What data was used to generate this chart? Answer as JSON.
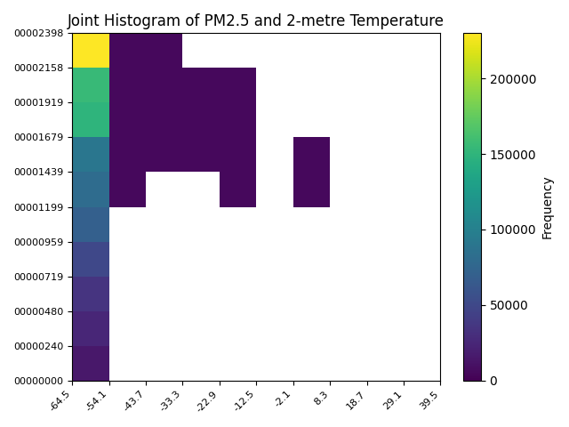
{
  "title": "Joint Histogram of PM2.5 and 2-metre Temperature",
  "colormap": "viridis",
  "cbar_label": "Frequency",
  "x_edges": [
    -64.5,
    -54.1,
    -43.7,
    -33.3,
    -22.9,
    -12.5,
    -2.1,
    8.3,
    18.7,
    29.1,
    39.5
  ],
  "y_edges": [
    0,
    240,
    480,
    719,
    959,
    1199,
    1439,
    1679,
    1919,
    2158,
    2398
  ],
  "cells": [
    {
      "xi": 0,
      "yi": 9,
      "val": 230000
    },
    {
      "xi": 0,
      "yi": 8,
      "val": 155000
    },
    {
      "xi": 0,
      "yi": 7,
      "val": 150000
    },
    {
      "xi": 0,
      "yi": 6,
      "val": 90000
    },
    {
      "xi": 0,
      "yi": 5,
      "val": 80000
    },
    {
      "xi": 0,
      "yi": 4,
      "val": 70000
    },
    {
      "xi": 0,
      "yi": 3,
      "val": 50000
    },
    {
      "xi": 0,
      "yi": 2,
      "val": 35000
    },
    {
      "xi": 0,
      "yi": 1,
      "val": 25000
    },
    {
      "xi": 0,
      "yi": 0,
      "val": 15000
    },
    {
      "xi": 1,
      "yi": 9,
      "val": 5000
    },
    {
      "xi": 1,
      "yi": 8,
      "val": 5000
    },
    {
      "xi": 1,
      "yi": 7,
      "val": 5000
    },
    {
      "xi": 1,
      "yi": 6,
      "val": 5000
    },
    {
      "xi": 1,
      "yi": 5,
      "val": 5000
    },
    {
      "xi": 2,
      "yi": 9,
      "val": 5000
    },
    {
      "xi": 2,
      "yi": 8,
      "val": 5000
    },
    {
      "xi": 2,
      "yi": 7,
      "val": 5000
    },
    {
      "xi": 2,
      "yi": 6,
      "val": 5000
    },
    {
      "xi": 3,
      "yi": 8,
      "val": 5000
    },
    {
      "xi": 3,
      "yi": 7,
      "val": 5000
    },
    {
      "xi": 3,
      "yi": 6,
      "val": 5000
    },
    {
      "xi": 4,
      "yi": 8,
      "val": 5000
    },
    {
      "xi": 4,
      "yi": 7,
      "val": 5000
    },
    {
      "xi": 4,
      "yi": 6,
      "val": 5000
    },
    {
      "xi": 4,
      "yi": 5,
      "val": 5000
    },
    {
      "xi": 6,
      "yi": 6,
      "val": 5000
    },
    {
      "xi": 6,
      "yi": 5,
      "val": 5000
    }
  ],
  "vmin": 0,
  "vmax": 230000,
  "ytick_labels": [
    "00000000",
    "00000240",
    "00000480",
    "00000719",
    "00000959",
    "00001199",
    "00001439",
    "00001679",
    "00001919",
    "00002158",
    "00002398"
  ],
  "xtick_labels": [
    "-64.5",
    "-54.1",
    "-43.7",
    "-33.3",
    "-22.9",
    "-12.5",
    "-2.1",
    "8.3",
    "18.7",
    "29.1",
    "39.5"
  ],
  "figsize": [
    6.4,
    4.8
  ],
  "dpi": 100
}
